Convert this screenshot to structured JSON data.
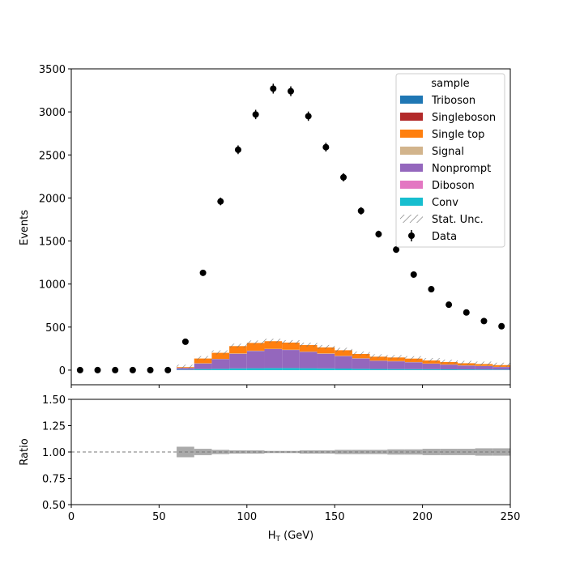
{
  "chart_data": [
    {
      "type": "bar",
      "stacked": true,
      "panel": "main",
      "bin_edges": [
        0,
        10,
        20,
        30,
        40,
        50,
        60,
        70,
        80,
        90,
        100,
        110,
        120,
        130,
        140,
        150,
        160,
        170,
        180,
        190,
        200,
        210,
        220,
        230,
        240,
        250
      ],
      "series": [
        {
          "name": "Triboson",
          "color": "#1f77b4",
          "values": [
            0,
            0,
            0,
            0,
            0,
            0,
            0,
            0,
            0,
            0,
            0,
            0,
            0,
            0,
            0,
            0,
            0,
            0,
            0,
            0,
            0,
            0,
            0,
            0,
            0
          ]
        },
        {
          "name": "Singleboson",
          "color": "#b22a2a",
          "values": [
            0,
            0,
            0,
            0,
            0,
            0,
            0,
            0,
            0,
            0,
            0,
            0,
            0,
            0,
            0,
            0,
            0,
            0,
            0,
            0,
            0,
            0,
            0,
            0,
            0
          ]
        },
        {
          "name": "Single top",
          "color": "#ff7f0e",
          "values": [
            0,
            0,
            0,
            0,
            0,
            0,
            8,
            55,
            70,
            85,
            90,
            88,
            82,
            75,
            70,
            65,
            50,
            45,
            42,
            40,
            35,
            28,
            25,
            22,
            20
          ]
        },
        {
          "name": "Signal",
          "color": "#d2b48c",
          "values": [
            0,
            0,
            0,
            0,
            0,
            0,
            2,
            3,
            4,
            4,
            4,
            4,
            4,
            4,
            4,
            3,
            3,
            3,
            3,
            3,
            2,
            2,
            2,
            2,
            2
          ]
        },
        {
          "name": "Nonprompt",
          "color": "#9467bd",
          "values": [
            0,
            0,
            0,
            0,
            0,
            0,
            20,
            65,
            112,
            170,
            200,
            220,
            210,
            190,
            170,
            145,
            120,
            95,
            90,
            80,
            65,
            55,
            45,
            40,
            30
          ]
        },
        {
          "name": "Diboson",
          "color": "#e377c2",
          "values": [
            0,
            0,
            0,
            0,
            0,
            0,
            0,
            0,
            0,
            0,
            0,
            0,
            0,
            0,
            0,
            0,
            0,
            0,
            0,
            0,
            0,
            0,
            0,
            0,
            0
          ]
        },
        {
          "name": "Conv",
          "color": "#17becf",
          "values": [
            0,
            0,
            0,
            0,
            0,
            0,
            5,
            12,
            15,
            20,
            22,
            24,
            24,
            22,
            20,
            18,
            15,
            13,
            12,
            11,
            10,
            9,
            8,
            7,
            6
          ]
        }
      ],
      "data": {
        "name": "Data",
        "x": [
          5,
          15,
          25,
          35,
          45,
          55,
          65,
          75,
          85,
          95,
          105,
          115,
          125,
          135,
          145,
          155,
          165,
          175,
          185,
          195,
          205,
          215,
          225,
          235,
          245
        ],
        "y": [
          0,
          0,
          0,
          0,
          0,
          0,
          330,
          1130,
          1960,
          2560,
          2970,
          3270,
          3240,
          2950,
          2590,
          2240,
          1850,
          1580,
          1400,
          1110,
          940,
          760,
          670,
          570,
          510
        ]
      },
      "legend": {
        "title": "sample",
        "placement": "top-right",
        "stat_unc_label": "Stat. Unc."
      },
      "xlabel": "H_T (GeV)",
      "ylabel": "Events",
      "xlim": [
        0,
        250
      ],
      "ylim": [
        -170,
        3500
      ],
      "yticks": [
        0,
        500,
        1000,
        1500,
        2000,
        2500,
        3000,
        3500
      ],
      "ytick_labels": [
        "0",
        "500",
        "1000",
        "1500",
        "2000",
        "2500",
        "3000",
        "3500"
      ]
    },
    {
      "type": "area",
      "panel": "ratio",
      "ylabel": "Ratio",
      "xlabel": "H_T (GeV)",
      "xlim": [
        0,
        250
      ],
      "ylim": [
        0.5,
        1.5
      ],
      "reference_line": 1.0,
      "band_edges": [
        60,
        70,
        80,
        90,
        100,
        110,
        120,
        130,
        140,
        150,
        160,
        170,
        180,
        190,
        200,
        210,
        220,
        230,
        240,
        250
      ],
      "band_halfwidth": [
        0.05,
        0.03,
        0.02,
        0.015,
        0.015,
        0.01,
        0.01,
        0.015,
        0.015,
        0.02,
        0.02,
        0.02,
        0.025,
        0.025,
        0.03,
        0.03,
        0.03,
        0.035,
        0.035
      ],
      "xticks": [
        0,
        50,
        100,
        150,
        200,
        250
      ],
      "xtick_labels": [
        "0",
        "50",
        "100",
        "150",
        "200",
        "250"
      ],
      "yticks": [
        0.5,
        0.75,
        1.0,
        1.25,
        1.5
      ],
      "ytick_labels": [
        "0.50",
        "0.75",
        "1.00",
        "1.25",
        "1.50"
      ]
    }
  ],
  "labels": {
    "xlabel_main": "H",
    "xlabel_sub": "T",
    "xlabel_unit": " (GeV)"
  }
}
